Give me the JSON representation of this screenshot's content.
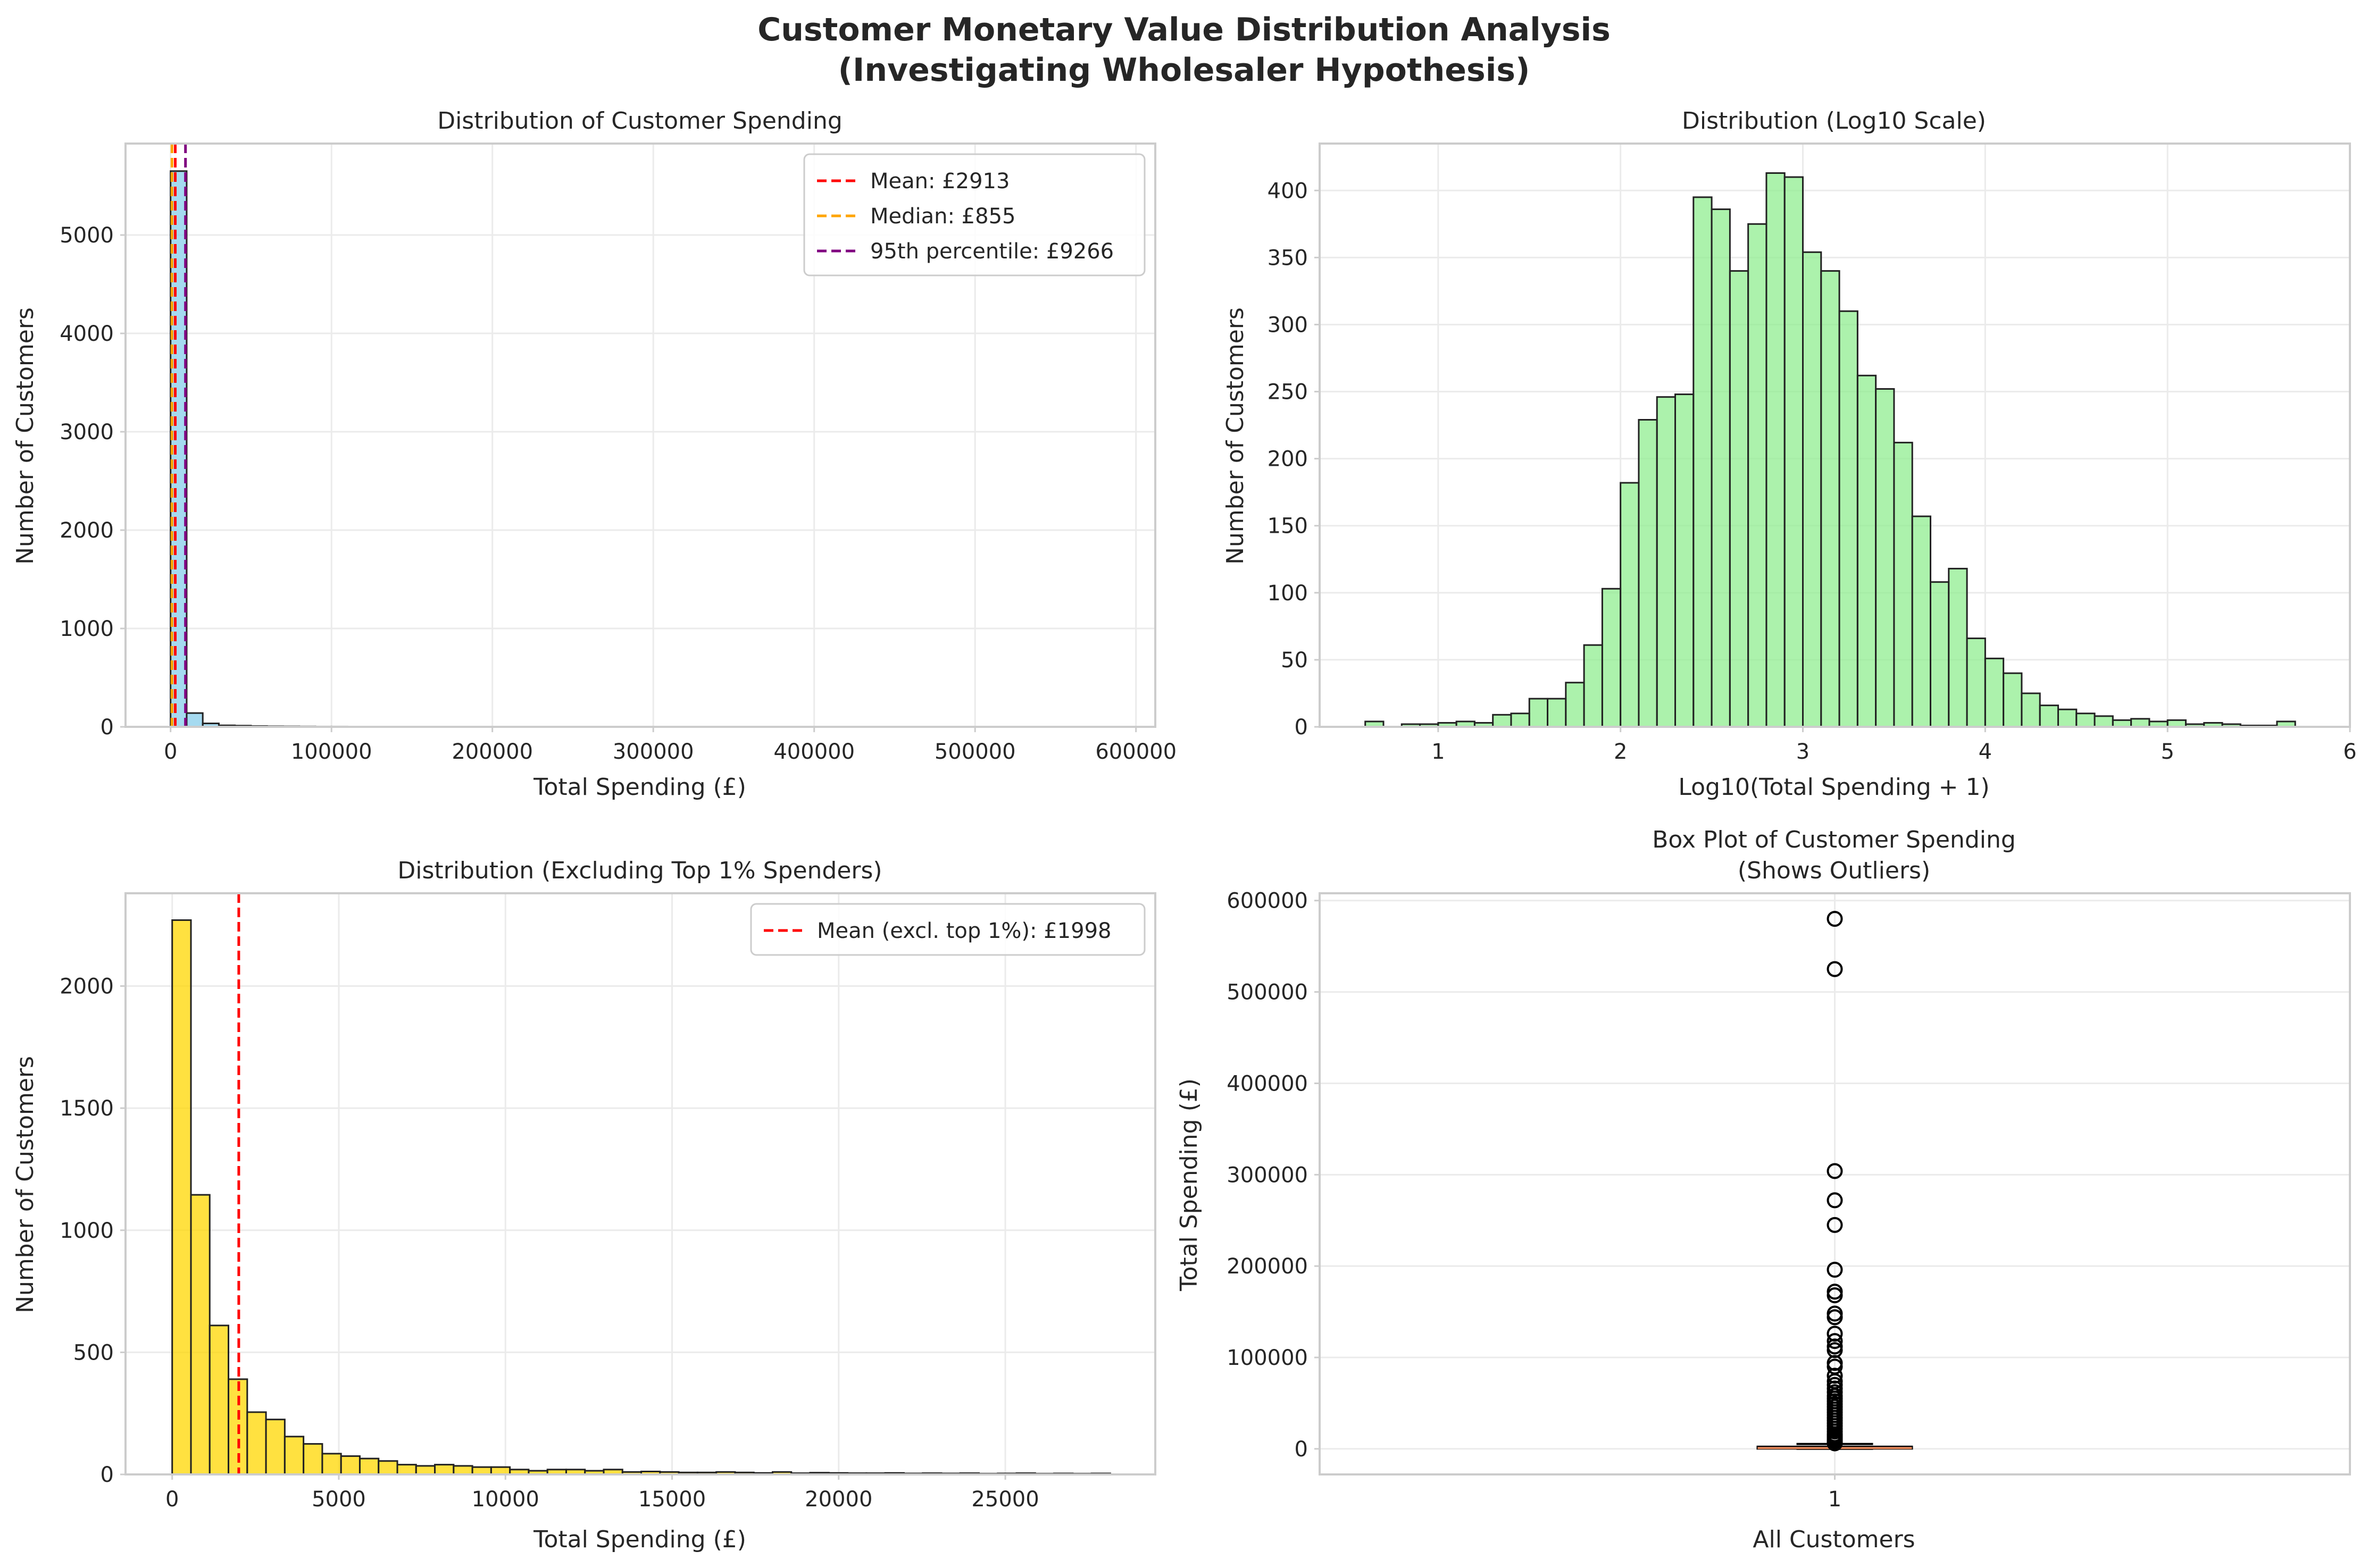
{
  "figure": {
    "title": "Customer Monetary Value Distribution Analysis",
    "subtitle": "(Investigating Wholesaler Hypothesis)"
  },
  "colors": {
    "hist_raw": "#87ceeb",
    "hist_log": "#90ee90",
    "hist_trim": "#ffd700",
    "mean_line": "#ff0000",
    "median_line": "#ffa500",
    "p95_line": "#800080",
    "box_median": "#e8885a",
    "grid": "#ebebeb",
    "spine": "#cccccc"
  },
  "chart_data": [
    {
      "id": "raw",
      "type": "bar",
      "title": "Distribution of Customer Spending",
      "xlabel": "Total Spending (£)",
      "ylabel": "Number of Customers",
      "xlim": [
        -28000,
        612000
      ],
      "ylim": [
        0,
        5930
      ],
      "xticks": [
        0,
        100000,
        200000,
        300000,
        400000,
        500000,
        600000
      ],
      "yticks": [
        0,
        1000,
        2000,
        3000,
        4000,
        5000
      ],
      "bin_start": 0,
      "bin_width": 10000,
      "counts": [
        5650,
        140,
        35,
        15,
        12,
        8,
        6,
        5,
        4,
        3,
        3,
        2,
        2,
        1,
        1,
        2,
        1,
        1,
        0,
        1,
        0,
        0,
        0,
        0,
        0,
        0,
        0,
        0,
        0,
        1,
        0,
        0,
        0,
        0,
        0,
        0,
        0,
        0,
        0,
        0,
        0,
        0,
        0,
        0,
        0,
        0,
        0,
        0,
        0,
        0,
        0,
        0,
        0,
        1,
        0,
        0,
        0,
        1
      ],
      "vlines": [
        {
          "label": "Mean: £2913",
          "value": 2913,
          "color": "#ff0000"
        },
        {
          "label": "Median: £855",
          "value": 855,
          "color": "#ffa500"
        },
        {
          "label": "95th percentile: £9266",
          "value": 9266,
          "color": "#800080"
        }
      ],
      "legend": "top-right",
      "grid": true
    },
    {
      "id": "log",
      "type": "bar",
      "title": "Distribution (Log10 Scale)",
      "xlabel": "Log10(Total Spending + 1)",
      "ylabel": "Number of Customers",
      "xlim": [
        0.35,
        6.0
      ],
      "ylim": [
        0,
        435
      ],
      "xticks": [
        1,
        2,
        3,
        4,
        5,
        6
      ],
      "yticks": [
        0,
        50,
        100,
        150,
        200,
        250,
        300,
        350,
        400
      ],
      "bin_start": 0.6,
      "bin_width": 0.1,
      "counts": [
        4,
        0,
        2,
        2,
        3,
        4,
        3,
        9,
        10,
        21,
        21,
        33,
        61,
        103,
        182,
        229,
        246,
        248,
        395,
        386,
        340,
        375,
        413,
        410,
        354,
        340,
        310,
        262,
        252,
        212,
        157,
        108,
        118,
        66,
        51,
        40,
        25,
        16,
        13,
        10,
        8,
        5,
        6,
        4,
        5,
        2,
        3,
        2,
        1,
        1,
        4
      ],
      "legend": "none",
      "grid": true
    },
    {
      "id": "trim",
      "type": "bar",
      "title": "Distribution (Excluding Top 1% Spenders)",
      "xlabel": "Total Spending (£)",
      "ylabel": "Number of Customers",
      "xlim": [
        -1400,
        29500
      ],
      "ylim": [
        0,
        2380
      ],
      "xticks": [
        0,
        5000,
        10000,
        15000,
        20000,
        25000
      ],
      "yticks": [
        0,
        500,
        1000,
        1500,
        2000
      ],
      "bin_start": 0,
      "bin_width": 563,
      "counts": [
        2270,
        1145,
        610,
        390,
        255,
        225,
        155,
        125,
        85,
        75,
        65,
        55,
        40,
        35,
        40,
        35,
        30,
        30,
        20,
        15,
        20,
        20,
        15,
        20,
        10,
        12,
        10,
        8,
        8,
        10,
        8,
        6,
        10,
        5,
        7,
        6,
        5,
        5,
        6,
        4,
        5,
        4,
        5,
        3,
        4,
        5,
        3,
        4,
        3,
        4
      ],
      "vlines": [
        {
          "label": "Mean (excl. top 1%): £1998",
          "value": 1998,
          "color": "#ff0000"
        }
      ],
      "legend": "top-right",
      "grid": true
    },
    {
      "id": "box",
      "type": "box",
      "title": "Box Plot of Customer Spending",
      "subtitle": "(Shows Outliers)",
      "xlabel": "All Customers",
      "ylabel": "Total Spending (£)",
      "categories": [
        "1"
      ],
      "ylim": [
        -28000,
        608000
      ],
      "yticks": [
        0,
        100000,
        200000,
        300000,
        400000,
        500000,
        600000
      ],
      "box": {
        "q1": 300,
        "median": 855,
        "q3": 2300,
        "whisker_low": 0,
        "whisker_high": 5300
      },
      "outliers": [
        580000,
        525000,
        304000,
        272000,
        245000,
        196000,
        172000,
        168000,
        148000,
        144000,
        126000,
        118000,
        112000,
        108000,
        94000,
        90000,
        80000,
        74000,
        70000,
        66000,
        62000,
        58000,
        55000,
        52000,
        49000,
        46000,
        43000,
        40000,
        37000,
        34000,
        31000,
        28000,
        25000,
        22000,
        19000,
        16000,
        14000,
        12000,
        10000,
        8500,
        7000,
        6000
      ],
      "grid": true
    }
  ]
}
